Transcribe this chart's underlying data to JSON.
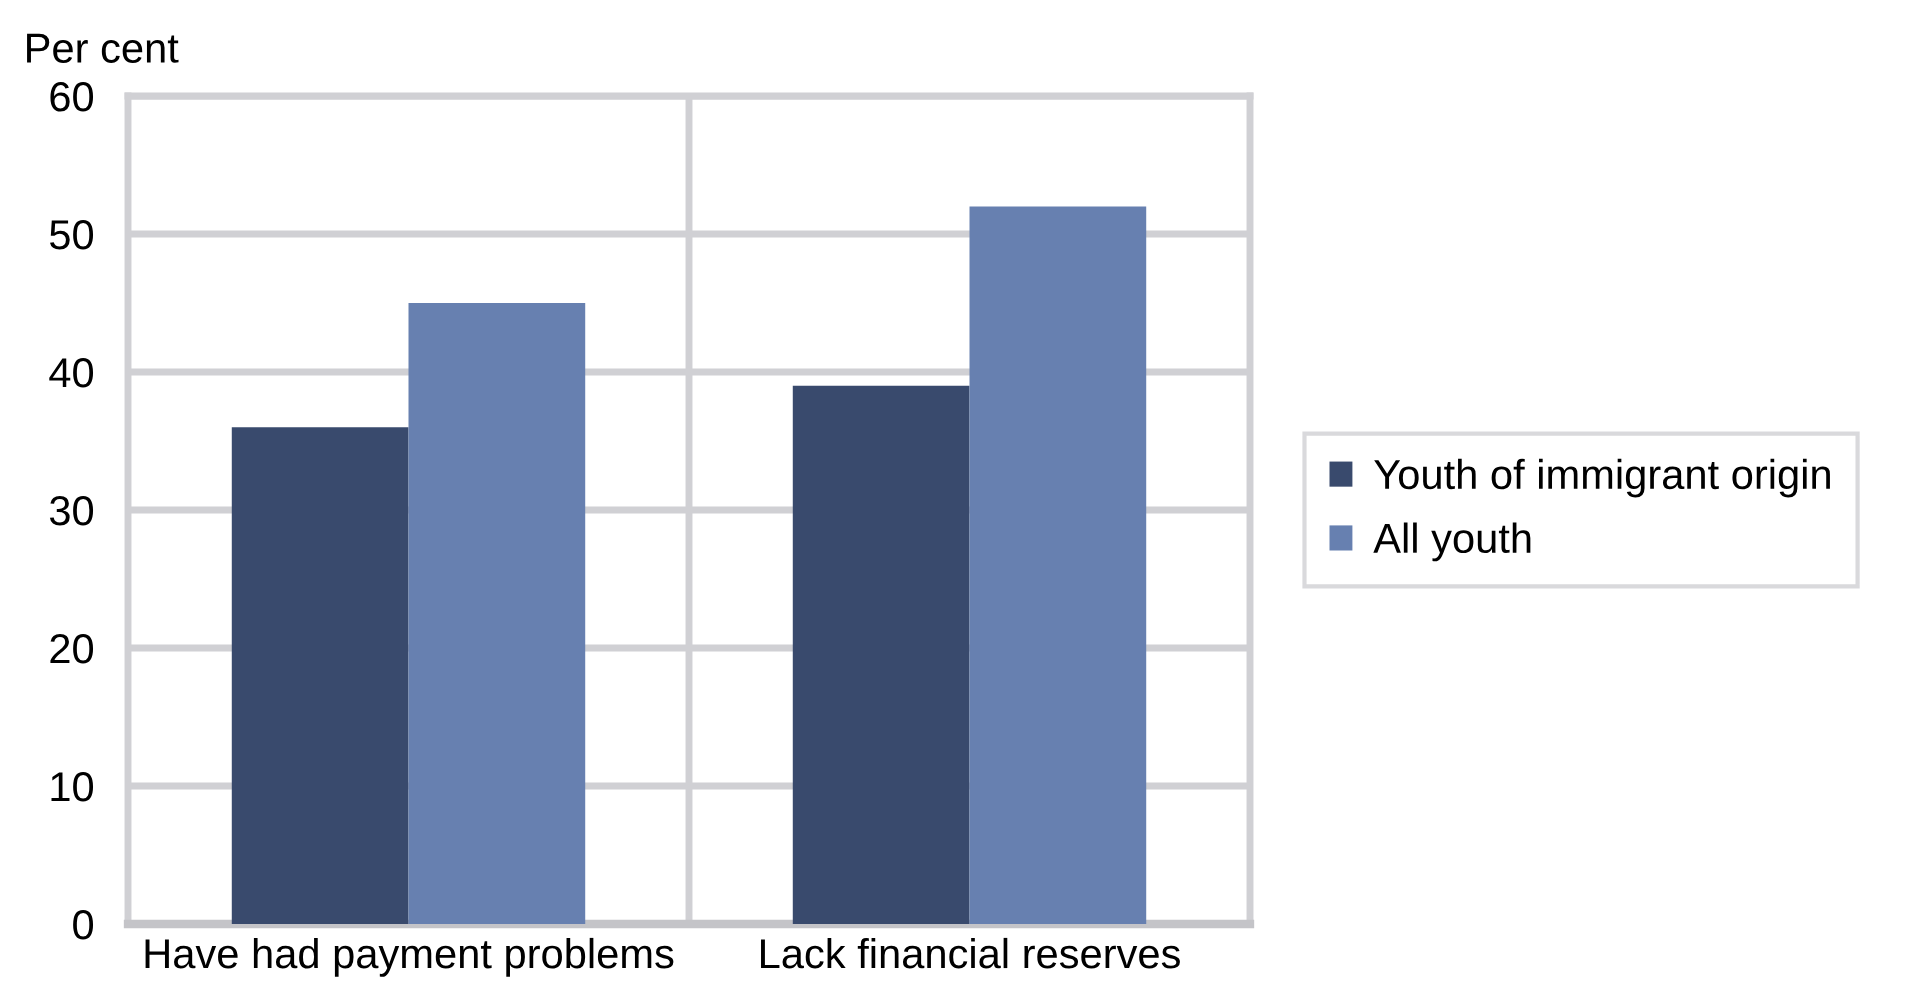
{
  "chart_data": {
    "type": "bar",
    "ylabel": "Per cent",
    "categories": [
      "Have had payment problems",
      "Lack financial reserves"
    ],
    "series": [
      {
        "name": "Youth of immigrant origin",
        "color": "#394a6d",
        "values": [
          36,
          39
        ]
      },
      {
        "name": "All youth",
        "color": "#6780b0",
        "values": [
          45,
          52
        ]
      }
    ],
    "ylim": [
      0,
      60
    ],
    "yticks": [
      0,
      10,
      20,
      30,
      40,
      50,
      60
    ],
    "grid": true,
    "legend": "right"
  }
}
